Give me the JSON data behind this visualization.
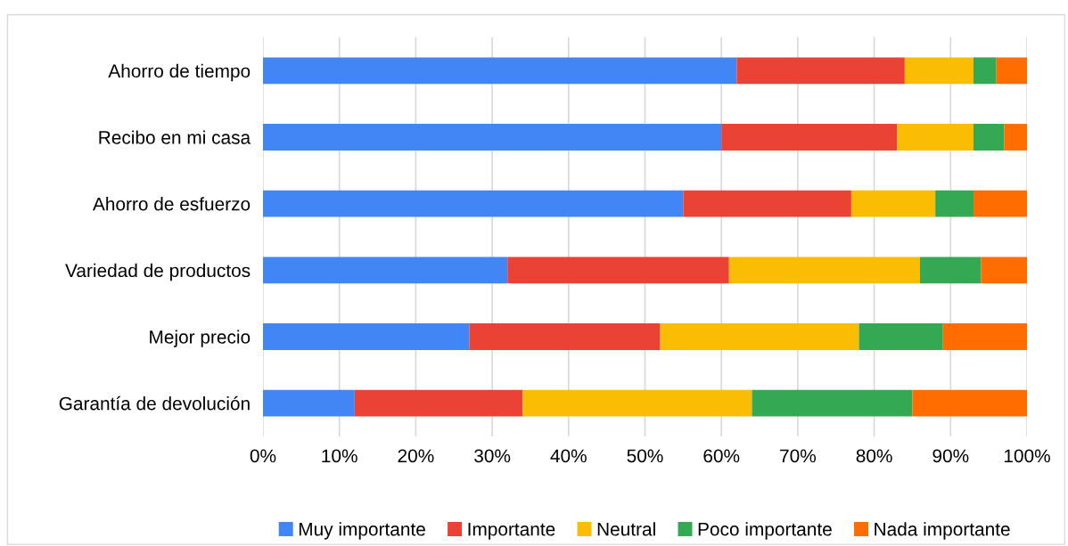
{
  "chart_data": {
    "type": "bar",
    "orientation": "horizontal",
    "stacked": true,
    "categories": [
      "Ahorro de tiempo",
      "Recibo en mi casa",
      "Ahorro de esfuerzo",
      "Variedad de productos",
      "Mejor precio",
      "Garantía de devolución"
    ],
    "series": [
      {
        "name": "Muy importante",
        "color": "#4285f4",
        "values": [
          62,
          60,
          55,
          32,
          27,
          12
        ]
      },
      {
        "name": "Importante",
        "color": "#ea4335",
        "values": [
          22,
          23,
          22,
          29,
          25,
          22
        ]
      },
      {
        "name": "Neutral",
        "color": "#fbbc04",
        "values": [
          9,
          10,
          11,
          25,
          26,
          30
        ]
      },
      {
        "name": "Poco importante",
        "color": "#34a853",
        "values": [
          3,
          4,
          5,
          8,
          11,
          21
        ]
      },
      {
        "name": "Nada importante",
        "color": "#ff6d01",
        "values": [
          4,
          3,
          7,
          6,
          11,
          15
        ]
      }
    ],
    "xlim": [
      0,
      100
    ],
    "xticks": [
      {
        "value": 0,
        "label": "0%"
      },
      {
        "value": 10,
        "label": "10%"
      },
      {
        "value": 20,
        "label": "20%"
      },
      {
        "value": 30,
        "label": "30%"
      },
      {
        "value": 40,
        "label": "40%"
      },
      {
        "value": 50,
        "label": "50%"
      },
      {
        "value": 60,
        "label": "60%"
      },
      {
        "value": 70,
        "label": "70%"
      },
      {
        "value": 80,
        "label": "80%"
      },
      {
        "value": 90,
        "label": "90%"
      },
      {
        "value": 100,
        "label": "100%"
      }
    ],
    "grid": "x",
    "legend": "bottom"
  }
}
